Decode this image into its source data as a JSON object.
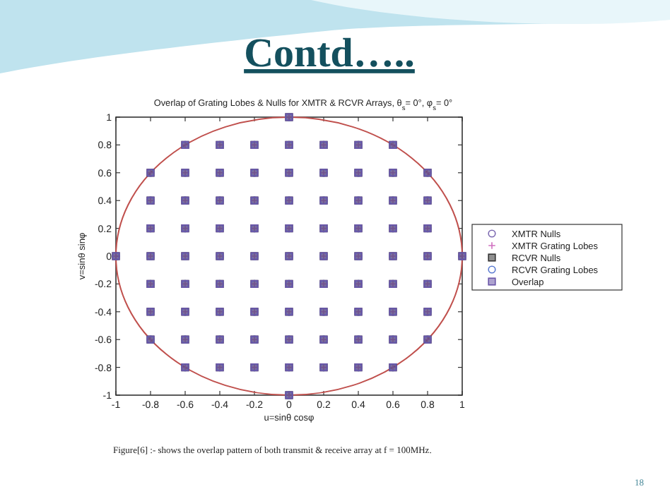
{
  "chart_data": {
    "type": "scatter",
    "title": "Overlap of Grating Lobes & Nulls for XMTR & RCVR Arrays, θ$_{s}$= 0°, φ$_{s}$= 0°",
    "xlabel": "u=sinθ cosφ",
    "ylabel": "v=sinθ sinφ",
    "annotations": [
      "Contd…..",
      "Figure[6] :- shows the overlap pattern of both transmit  & receive  array at f = 100MHz.",
      "18"
    ],
    "xlim": [
      -1,
      1
    ],
    "ylim": [
      -1,
      1
    ],
    "xticks": [
      -1,
      -0.8,
      -0.6,
      -0.4,
      -0.2,
      0,
      0.2,
      0.4,
      0.6,
      0.8,
      1
    ],
    "yticks": [
      -1,
      -0.8,
      -0.6,
      -0.4,
      -0.2,
      0,
      0.2,
      0.4,
      0.6,
      0.8,
      1
    ],
    "grid": false,
    "legend": "right",
    "x": [
      0,
      -0.6,
      -0.4,
      -0.2,
      0,
      0.2,
      0.4,
      0.6,
      -0.8,
      -0.6,
      -0.4,
      -0.2,
      0,
      0.2,
      0.4,
      0.6,
      0.8,
      -0.8,
      -0.6,
      -0.4,
      -0.2,
      0,
      0.2,
      0.4,
      0.6,
      0.8,
      -0.8,
      -0.6,
      -0.4,
      -0.2,
      0,
      0.2,
      0.4,
      0.6,
      0.8,
      -1,
      -0.8,
      -0.6,
      -0.4,
      -0.2,
      0,
      0.2,
      0.4,
      0.6,
      0.8,
      1,
      -0.8,
      -0.6,
      -0.4,
      -0.2,
      0,
      0.2,
      0.4,
      0.6,
      0.8,
      -0.8,
      -0.6,
      -0.4,
      -0.2,
      0,
      0.2,
      0.4,
      0.6,
      0.8,
      -0.8,
      -0.6,
      -0.4,
      -0.2,
      0,
      0.2,
      0.4,
      0.6,
      0.8,
      -0.6,
      -0.4,
      -0.2,
      0,
      0.2,
      0.4,
      0.6,
      0
    ],
    "series": [
      {
        "name": "XMTR Nulls",
        "color": "#7b68b0",
        "marker": "circle",
        "values": [
          1,
          0.8,
          0.8,
          0.8,
          0.8,
          0.8,
          0.8,
          0.8,
          0.6,
          0.6,
          0.6,
          0.6,
          0.6,
          0.6,
          0.6,
          0.6,
          0.6,
          0.4,
          0.4,
          0.4,
          0.4,
          0.4,
          0.4,
          0.4,
          0.4,
          0.4,
          0.2,
          0.2,
          0.2,
          0.2,
          0.2,
          0.2,
          0.2,
          0.2,
          0.2,
          0,
          0,
          0,
          0,
          0,
          0,
          0,
          0,
          0,
          0,
          0,
          -0.2,
          -0.2,
          -0.2,
          -0.2,
          -0.2,
          -0.2,
          -0.2,
          -0.2,
          -0.2,
          -0.4,
          -0.4,
          -0.4,
          -0.4,
          -0.4,
          -0.4,
          -0.4,
          -0.4,
          -0.4,
          -0.6,
          -0.6,
          -0.6,
          -0.6,
          -0.6,
          -0.6,
          -0.6,
          -0.6,
          -0.6,
          -0.8,
          -0.8,
          -0.8,
          -0.8,
          -0.8,
          -0.8,
          -0.8,
          -1
        ]
      },
      {
        "name": "XMTR Grating Lobes",
        "color": "#d070c0",
        "marker": "cross",
        "values": [
          1,
          0.8,
          0.8,
          0.8,
          0.8,
          0.8,
          0.8,
          0.8,
          0.6,
          0.6,
          0.6,
          0.6,
          0.6,
          0.6,
          0.6,
          0.6,
          0.6,
          0.4,
          0.4,
          0.4,
          0.4,
          0.4,
          0.4,
          0.4,
          0.4,
          0.4,
          0.2,
          0.2,
          0.2,
          0.2,
          0.2,
          0.2,
          0.2,
          0.2,
          0.2,
          0,
          0,
          0,
          0,
          0,
          0,
          0,
          0,
          0,
          0,
          0,
          -0.2,
          -0.2,
          -0.2,
          -0.2,
          -0.2,
          -0.2,
          -0.2,
          -0.2,
          -0.2,
          -0.4,
          -0.4,
          -0.4,
          -0.4,
          -0.4,
          -0.4,
          -0.4,
          -0.4,
          -0.4,
          -0.6,
          -0.6,
          -0.6,
          -0.6,
          -0.6,
          -0.6,
          -0.6,
          -0.6,
          -0.6,
          -0.8,
          -0.8,
          -0.8,
          -0.8,
          -0.8,
          -0.8,
          -0.8,
          -1
        ]
      },
      {
        "name": "RCVR Nulls",
        "color": "#333333",
        "marker": "square",
        "values": [
          1,
          0.8,
          0.8,
          0.8,
          0.8,
          0.8,
          0.8,
          0.8,
          0.6,
          0.6,
          0.6,
          0.6,
          0.6,
          0.6,
          0.6,
          0.6,
          0.6,
          0.4,
          0.4,
          0.4,
          0.4,
          0.4,
          0.4,
          0.4,
          0.4,
          0.4,
          0.2,
          0.2,
          0.2,
          0.2,
          0.2,
          0.2,
          0.2,
          0.2,
          0.2,
          0,
          0,
          0,
          0,
          0,
          0,
          0,
          0,
          0,
          0,
          0,
          -0.2,
          -0.2,
          -0.2,
          -0.2,
          -0.2,
          -0.2,
          -0.2,
          -0.2,
          -0.2,
          -0.4,
          -0.4,
          -0.4,
          -0.4,
          -0.4,
          -0.4,
          -0.4,
          -0.4,
          -0.4,
          -0.6,
          -0.6,
          -0.6,
          -0.6,
          -0.6,
          -0.6,
          -0.6,
          -0.6,
          -0.6,
          -0.8,
          -0.8,
          -0.8,
          -0.8,
          -0.8,
          -0.8,
          -0.8,
          -1
        ]
      },
      {
        "name": "RCVR Grating Lobes",
        "color": "#5a7ad0",
        "marker": "circle",
        "values": [
          1,
          0.8,
          0.8,
          0.8,
          0.8,
          0.8,
          0.8,
          0.8,
          0.6,
          0.6,
          0.6,
          0.6,
          0.6,
          0.6,
          0.6,
          0.6,
          0.6,
          0.4,
          0.4,
          0.4,
          0.4,
          0.4,
          0.4,
          0.4,
          0.4,
          0.4,
          0.2,
          0.2,
          0.2,
          0.2,
          0.2,
          0.2,
          0.2,
          0.2,
          0.2,
          0,
          0,
          0,
          0,
          0,
          0,
          0,
          0,
          0,
          0,
          0,
          -0.2,
          -0.2,
          -0.2,
          -0.2,
          -0.2,
          -0.2,
          -0.2,
          -0.2,
          -0.2,
          -0.4,
          -0.4,
          -0.4,
          -0.4,
          -0.4,
          -0.4,
          -0.4,
          -0.4,
          -0.4,
          -0.6,
          -0.6,
          -0.6,
          -0.6,
          -0.6,
          -0.6,
          -0.6,
          -0.6,
          -0.6,
          -0.8,
          -0.8,
          -0.8,
          -0.8,
          -0.8,
          -0.8,
          -0.8,
          -1
        ]
      },
      {
        "name": "Overlap",
        "color": "#6a55a8",
        "marker": "square",
        "values": [
          1,
          0.8,
          0.8,
          0.8,
          0.8,
          0.8,
          0.8,
          0.8,
          0.6,
          0.6,
          0.6,
          0.6,
          0.6,
          0.6,
          0.6,
          0.6,
          0.6,
          0.4,
          0.4,
          0.4,
          0.4,
          0.4,
          0.4,
          0.4,
          0.4,
          0.4,
          0.2,
          0.2,
          0.2,
          0.2,
          0.2,
          0.2,
          0.2,
          0.2,
          0.2,
          0,
          0,
          0,
          0,
          0,
          0,
          0,
          0,
          0,
          0,
          0,
          -0.2,
          -0.2,
          -0.2,
          -0.2,
          -0.2,
          -0.2,
          -0.2,
          -0.2,
          -0.2,
          -0.4,
          -0.4,
          -0.4,
          -0.4,
          -0.4,
          -0.4,
          -0.4,
          -0.4,
          -0.4,
          -0.6,
          -0.6,
          -0.6,
          -0.6,
          -0.6,
          -0.6,
          -0.6,
          -0.6,
          -0.6,
          -0.8,
          -0.8,
          -0.8,
          -0.8,
          -0.8,
          -0.8,
          -0.8,
          -1
        ]
      }
    ]
  }
}
